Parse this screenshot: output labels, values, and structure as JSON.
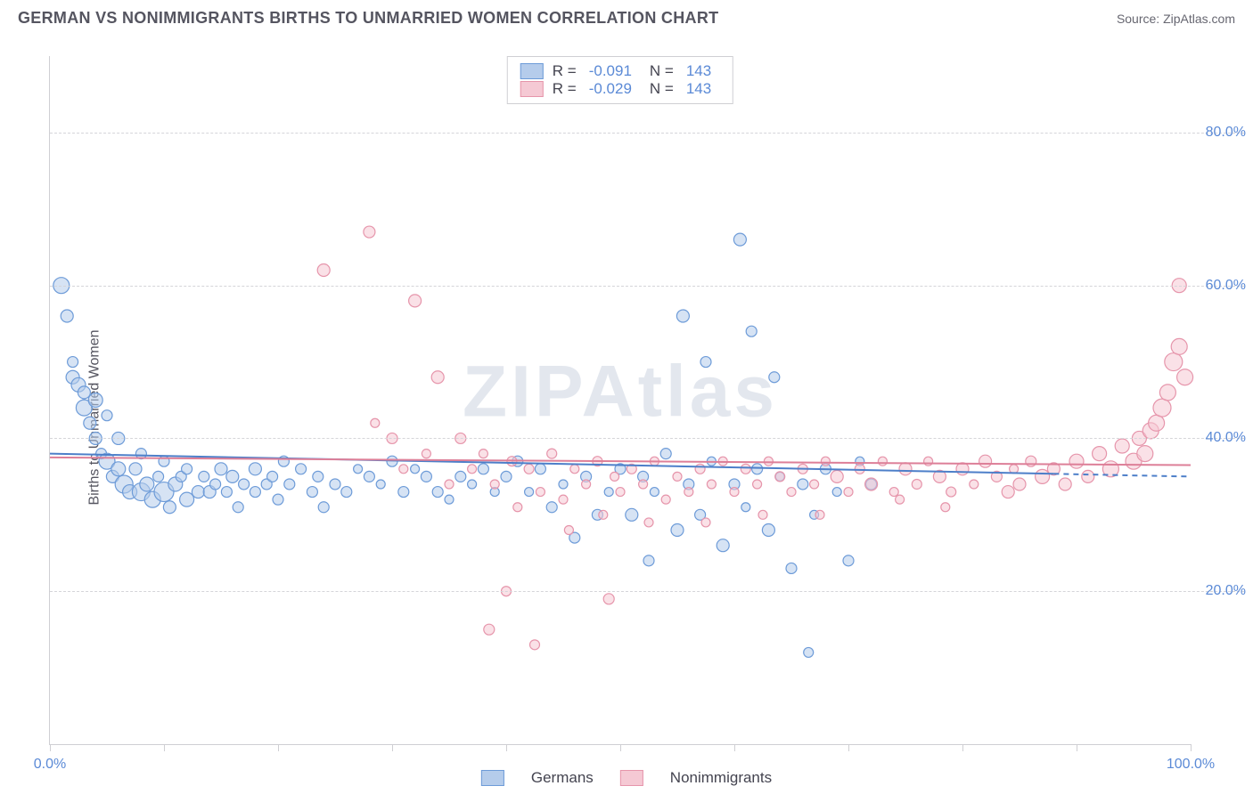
{
  "title": "GERMAN VS NONIMMIGRANTS BIRTHS TO UNMARRIED WOMEN CORRELATION CHART",
  "source_label": "Source:",
  "source_name": "ZipAtlas.com",
  "ylabel": "Births to Unmarried Women",
  "watermark": "ZIPAtlas",
  "chart": {
    "type": "scatter",
    "background_color": "#ffffff",
    "grid_color": "#d5d5d9",
    "border_color": "#cfcfd3",
    "xlim": [
      0,
      100
    ],
    "ylim": [
      0,
      90
    ],
    "yticks": [
      20,
      40,
      60,
      80
    ],
    "ytick_labels": [
      "20.0%",
      "40.0%",
      "60.0%",
      "80.0%"
    ],
    "xticks": [
      0,
      10,
      20,
      30,
      40,
      50,
      60,
      70,
      80,
      90,
      100
    ],
    "xtick_labels_shown": {
      "0": "0.0%",
      "100": "100.0%"
    },
    "tick_label_color": "#5b8ad6",
    "tick_label_fontsize": 16,
    "axis_label_color": "#555560",
    "series": [
      {
        "name": "Germans",
        "fill": "#b5cceb",
        "stroke": "#6d9bd8",
        "fill_opacity": 0.55,
        "R": "-0.091",
        "N": "143",
        "trend": {
          "y_at_x0": 38,
          "y_at_x100": 35,
          "color": "#4d7fc9",
          "width": 2,
          "tail_dash": true
        },
        "points": [
          [
            1,
            60,
            18
          ],
          [
            1.5,
            56,
            14
          ],
          [
            2,
            48,
            15
          ],
          [
            2,
            50,
            12
          ],
          [
            2.5,
            47,
            16
          ],
          [
            3,
            44,
            18
          ],
          [
            3,
            46,
            14
          ],
          [
            3.5,
            42,
            14
          ],
          [
            4,
            45,
            16
          ],
          [
            4,
            40,
            14
          ],
          [
            4.5,
            38,
            12
          ],
          [
            5,
            37,
            18
          ],
          [
            5,
            43,
            12
          ],
          [
            5.5,
            35,
            14
          ],
          [
            6,
            40,
            14
          ],
          [
            6,
            36,
            16
          ],
          [
            6.5,
            34,
            20
          ],
          [
            7,
            33,
            16
          ],
          [
            7.5,
            36,
            14
          ],
          [
            8,
            33,
            20
          ],
          [
            8,
            38,
            12
          ],
          [
            8.5,
            34,
            16
          ],
          [
            9,
            32,
            18
          ],
          [
            9.5,
            35,
            12
          ],
          [
            10,
            33,
            22
          ],
          [
            10,
            37,
            12
          ],
          [
            10.5,
            31,
            14
          ],
          [
            11,
            34,
            16
          ],
          [
            11.5,
            35,
            12
          ],
          [
            12,
            32,
            16
          ],
          [
            12,
            36,
            12
          ],
          [
            13,
            33,
            14
          ],
          [
            13.5,
            35,
            12
          ],
          [
            14,
            33,
            14
          ],
          [
            14.5,
            34,
            12
          ],
          [
            15,
            36,
            14
          ],
          [
            15.5,
            33,
            12
          ],
          [
            16,
            35,
            14
          ],
          [
            16.5,
            31,
            12
          ],
          [
            17,
            34,
            12
          ],
          [
            18,
            36,
            14
          ],
          [
            18,
            33,
            12
          ],
          [
            19,
            34,
            12
          ],
          [
            19.5,
            35,
            12
          ],
          [
            20,
            32,
            12
          ],
          [
            20.5,
            37,
            12
          ],
          [
            21,
            34,
            12
          ],
          [
            22,
            36,
            12
          ],
          [
            23,
            33,
            12
          ],
          [
            23.5,
            35,
            12
          ],
          [
            24,
            31,
            12
          ],
          [
            25,
            34,
            12
          ],
          [
            26,
            33,
            12
          ],
          [
            27,
            36,
            10
          ],
          [
            28,
            35,
            12
          ],
          [
            29,
            34,
            10
          ],
          [
            30,
            37,
            12
          ],
          [
            31,
            33,
            12
          ],
          [
            32,
            36,
            10
          ],
          [
            33,
            35,
            12
          ],
          [
            34,
            33,
            12
          ],
          [
            35,
            32,
            10
          ],
          [
            36,
            35,
            12
          ],
          [
            37,
            34,
            10
          ],
          [
            38,
            36,
            12
          ],
          [
            39,
            33,
            10
          ],
          [
            40,
            35,
            12
          ],
          [
            41,
            37,
            12
          ],
          [
            42,
            33,
            10
          ],
          [
            43,
            36,
            12
          ],
          [
            44,
            31,
            12
          ],
          [
            45,
            34,
            10
          ],
          [
            46,
            27,
            12
          ],
          [
            47,
            35,
            12
          ],
          [
            48,
            30,
            12
          ],
          [
            49,
            33,
            10
          ],
          [
            50,
            36,
            12
          ],
          [
            51,
            30,
            14
          ],
          [
            52,
            35,
            12
          ],
          [
            52.5,
            24,
            12
          ],
          [
            53,
            33,
            10
          ],
          [
            54,
            38,
            12
          ],
          [
            55,
            28,
            14
          ],
          [
            55.5,
            56,
            14
          ],
          [
            56,
            34,
            12
          ],
          [
            57,
            30,
            12
          ],
          [
            57.5,
            50,
            12
          ],
          [
            58,
            37,
            10
          ],
          [
            59,
            26,
            14
          ],
          [
            60,
            34,
            12
          ],
          [
            60.5,
            66,
            14
          ],
          [
            61,
            31,
            10
          ],
          [
            61.5,
            54,
            12
          ],
          [
            62,
            36,
            12
          ],
          [
            63,
            28,
            14
          ],
          [
            63.5,
            48,
            12
          ],
          [
            64,
            35,
            10
          ],
          [
            65,
            23,
            12
          ],
          [
            66,
            34,
            12
          ],
          [
            66.5,
            12,
            11
          ],
          [
            67,
            30,
            10
          ],
          [
            68,
            36,
            12
          ],
          [
            69,
            33,
            10
          ],
          [
            70,
            24,
            12
          ],
          [
            71,
            37,
            10
          ],
          [
            72,
            34,
            12
          ]
        ]
      },
      {
        "name": "Nonimmigrants",
        "fill": "#f5c9d4",
        "stroke": "#e695ab",
        "fill_opacity": 0.55,
        "R": "-0.029",
        "N": "143",
        "trend": {
          "y_at_x0": 37.5,
          "y_at_x100": 36.5,
          "color": "#dd7f98",
          "width": 2,
          "tail_dash": false
        },
        "points": [
          [
            24,
            62,
            14
          ],
          [
            28,
            67,
            13
          ],
          [
            28.5,
            42,
            10
          ],
          [
            30,
            40,
            12
          ],
          [
            31,
            36,
            10
          ],
          [
            32,
            58,
            14
          ],
          [
            33,
            38,
            10
          ],
          [
            34,
            48,
            14
          ],
          [
            35,
            34,
            10
          ],
          [
            36,
            40,
            12
          ],
          [
            37,
            36,
            10
          ],
          [
            38,
            38,
            10
          ],
          [
            38.5,
            15,
            12
          ],
          [
            39,
            34,
            10
          ],
          [
            40,
            20,
            11
          ],
          [
            40.5,
            37,
            11
          ],
          [
            41,
            31,
            10
          ],
          [
            42,
            36,
            11
          ],
          [
            42.5,
            13,
            11
          ],
          [
            43,
            33,
            10
          ],
          [
            44,
            38,
            11
          ],
          [
            45,
            32,
            10
          ],
          [
            45.5,
            28,
            10
          ],
          [
            46,
            36,
            10
          ],
          [
            47,
            34,
            10
          ],
          [
            48,
            37,
            11
          ],
          [
            48.5,
            30,
            10
          ],
          [
            49,
            19,
            12
          ],
          [
            49.5,
            35,
            10
          ],
          [
            50,
            33,
            10
          ],
          [
            51,
            36,
            11
          ],
          [
            52,
            34,
            10
          ],
          [
            52.5,
            29,
            10
          ],
          [
            53,
            37,
            10
          ],
          [
            54,
            32,
            10
          ],
          [
            55,
            35,
            10
          ],
          [
            56,
            33,
            10
          ],
          [
            57,
            36,
            11
          ],
          [
            57.5,
            29,
            10
          ],
          [
            58,
            34,
            10
          ],
          [
            59,
            37,
            10
          ],
          [
            60,
            33,
            10
          ],
          [
            61,
            36,
            11
          ],
          [
            62,
            34,
            10
          ],
          [
            62.5,
            30,
            10
          ],
          [
            63,
            37,
            10
          ],
          [
            64,
            35,
            11
          ],
          [
            65,
            33,
            10
          ],
          [
            66,
            36,
            11
          ],
          [
            67,
            34,
            10
          ],
          [
            67.5,
            30,
            10
          ],
          [
            68,
            37,
            10
          ],
          [
            69,
            35,
            14
          ],
          [
            70,
            33,
            10
          ],
          [
            71,
            36,
            11
          ],
          [
            72,
            34,
            14
          ],
          [
            73,
            37,
            10
          ],
          [
            74,
            33,
            10
          ],
          [
            74.5,
            32,
            10
          ],
          [
            75,
            36,
            14
          ],
          [
            76,
            34,
            11
          ],
          [
            77,
            37,
            10
          ],
          [
            78,
            35,
            14
          ],
          [
            78.5,
            31,
            10
          ],
          [
            79,
            33,
            11
          ],
          [
            80,
            36,
            14
          ],
          [
            81,
            34,
            10
          ],
          [
            82,
            37,
            14
          ],
          [
            83,
            35,
            12
          ],
          [
            84,
            33,
            14
          ],
          [
            84.5,
            36,
            10
          ],
          [
            85,
            34,
            14
          ],
          [
            86,
            37,
            12
          ],
          [
            87,
            35,
            16
          ],
          [
            88,
            36,
            14
          ],
          [
            89,
            34,
            14
          ],
          [
            90,
            37,
            16
          ],
          [
            91,
            35,
            14
          ],
          [
            92,
            38,
            16
          ],
          [
            93,
            36,
            18
          ],
          [
            94,
            39,
            16
          ],
          [
            95,
            37,
            18
          ],
          [
            95.5,
            40,
            16
          ],
          [
            96,
            38,
            18
          ],
          [
            96.5,
            41,
            18
          ],
          [
            97,
            42,
            18
          ],
          [
            97.5,
            44,
            20
          ],
          [
            98,
            46,
            18
          ],
          [
            98.5,
            50,
            20
          ],
          [
            99,
            52,
            18
          ],
          [
            99,
            60,
            16
          ],
          [
            99.5,
            48,
            18
          ]
        ]
      }
    ]
  },
  "legend_top": {
    "r_label": "R =",
    "n_label": "N ="
  },
  "legend_bottom": {
    "series1_label": "Germans",
    "series2_label": "Nonimmigrants"
  }
}
